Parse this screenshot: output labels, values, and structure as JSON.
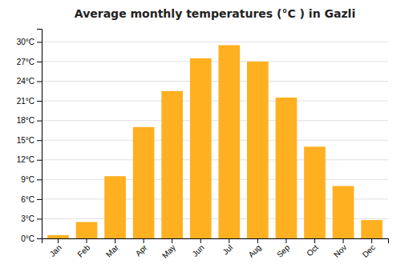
{
  "chart_data": {
    "type": "bar",
    "title": "Average monthly temperatures (°C ) in Gazli",
    "categories": [
      "Jan",
      "Feb",
      "Mar",
      "Apr",
      "May",
      "Jun",
      "Jul",
      "Aug",
      "Sep",
      "Oct",
      "Nov",
      "Dec"
    ],
    "values": [
      0.5,
      2.5,
      9.5,
      17.0,
      22.5,
      27.5,
      29.5,
      27.0,
      21.5,
      14.0,
      8.0,
      2.8
    ],
    "color": "#FFB020",
    "ylim": [
      0,
      32
    ],
    "yticks": [
      {
        "value": 0,
        "label": "0°C"
      },
      {
        "value": 3,
        "label": "3°C"
      },
      {
        "value": 6,
        "label": "6°C"
      },
      {
        "value": 9,
        "label": "9°C"
      },
      {
        "value": 12,
        "label": "12°C"
      },
      {
        "value": 15,
        "label": "15°C"
      },
      {
        "value": 18,
        "label": "18°C"
      },
      {
        "value": 21,
        "label": "21°C"
      },
      {
        "value": 24,
        "label": "24°C"
      },
      {
        "value": 27,
        "label": "27°C"
      },
      {
        "value": 30,
        "label": "30°C"
      }
    ],
    "grid": true
  }
}
